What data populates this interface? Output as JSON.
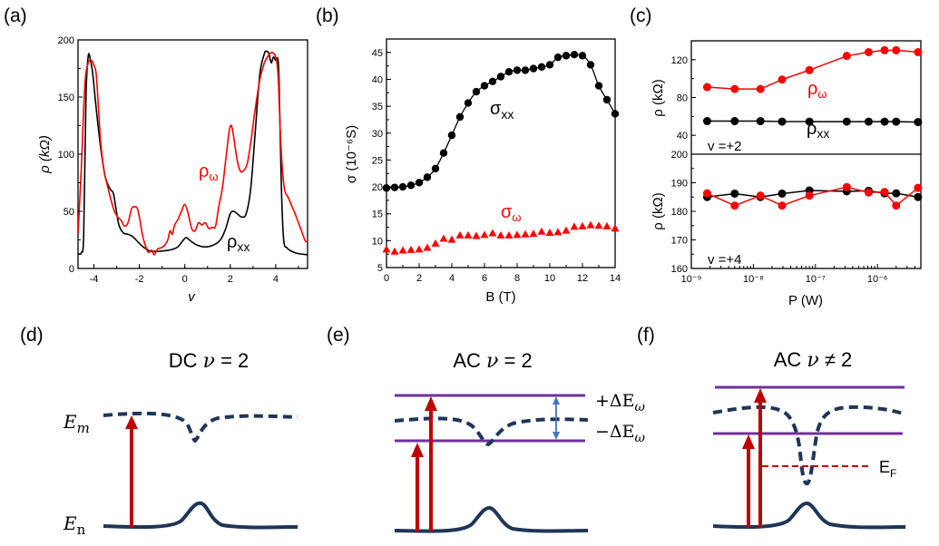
{
  "figure": {
    "panel_labels": [
      "(a)",
      "(b)",
      "(c)",
      "(d)",
      "(e)",
      "(f)"
    ]
  },
  "chart_data": [
    {
      "id": "a",
      "type": "line",
      "xlabel": "v",
      "ylabel": "ρ (kΩ)",
      "xlim": [
        -4.7,
        5.4
      ],
      "ylim": [
        0,
        200
      ],
      "xticks": [
        -4,
        -2,
        0,
        2,
        4
      ],
      "yticks": [
        0,
        50,
        100,
        150,
        200
      ],
      "grid": false,
      "annotations": [
        {
          "text": "ρ",
          "sub": "ω",
          "color": "#ff0000",
          "series": "rho_omega"
        },
        {
          "text": "ρ",
          "sub": "xx",
          "color": "#000000",
          "series": "rho_xx"
        }
      ],
      "series": [
        {
          "name": "ρxx",
          "color": "#000000",
          "x": [
            -4.7,
            -4.55,
            -4.45,
            -4.35,
            -4.25,
            -4.15,
            -4.05,
            -3.9,
            -3.7,
            -3.5,
            -3.3,
            -3.15,
            -3.05,
            -2.9,
            -2.7,
            -2.5,
            -2.3,
            -2.1,
            -1.9,
            -1.7,
            -1.5,
            -1.3,
            -1.1,
            -0.9,
            -0.7,
            -0.5,
            -0.3,
            -0.1,
            0.05,
            0.2,
            0.4,
            0.6,
            0.8,
            1.0,
            1.2,
            1.4,
            1.6,
            1.8,
            2.0,
            2.15,
            2.3,
            2.5,
            2.7,
            2.9,
            3.1,
            3.3,
            3.5,
            3.6,
            3.7,
            3.8,
            3.9,
            4.0,
            4.1,
            4.15,
            4.25,
            4.35,
            4.5,
            4.7,
            5.0,
            5.4
          ],
          "y": [
            13,
            14,
            30,
            150,
            186,
            182,
            170,
            140,
            105,
            80,
            70,
            66,
            55,
            38,
            31,
            30,
            28,
            24,
            20,
            17,
            15,
            15,
            15,
            15.5,
            16,
            17,
            19,
            24,
            27,
            25,
            22,
            20,
            19,
            19,
            20,
            22,
            26,
            35,
            48,
            50,
            48,
            45,
            48,
            70,
            120,
            170,
            188,
            190,
            188,
            180,
            185,
            182,
            183,
            160,
            70,
            25,
            18,
            15,
            13,
            12
          ]
        },
        {
          "name": "ρω",
          "color": "#ff0000",
          "x": [
            -4.7,
            -4.55,
            -4.4,
            -4.25,
            -4.1,
            -4.0,
            -3.9,
            -3.8,
            -3.7,
            -3.55,
            -3.4,
            -3.25,
            -3.1,
            -2.95,
            -2.8,
            -2.65,
            -2.5,
            -2.35,
            -2.25,
            -2.1,
            -2.0,
            -1.85,
            -1.7,
            -1.6,
            -1.45,
            -1.35,
            -1.2,
            -1.05,
            -0.9,
            -0.75,
            -0.65,
            -0.55,
            -0.45,
            -0.3,
            -0.15,
            0.0,
            0.15,
            0.3,
            0.45,
            0.6,
            0.75,
            0.9,
            1.05,
            1.2,
            1.35,
            1.5,
            1.65,
            1.8,
            1.95,
            2.05,
            2.15,
            2.3,
            2.45,
            2.6,
            2.75,
            2.9,
            3.1,
            3.3,
            3.5,
            3.7,
            3.85,
            4.0,
            4.1,
            4.2,
            4.3,
            4.4,
            4.55,
            4.7,
            4.85,
            5.0,
            5.15,
            5.3,
            5.4
          ],
          "y": [
            30,
            90,
            160,
            180,
            182,
            178,
            170,
            140,
            110,
            85,
            72,
            60,
            50,
            45,
            42,
            37,
            40,
            52,
            54,
            53,
            45,
            28,
            18,
            14,
            16,
            12,
            17,
            18,
            20,
            25,
            33,
            30,
            38,
            43,
            50,
            56,
            48,
            35,
            33,
            40,
            38,
            40,
            35,
            36,
            37,
            55,
            70,
            95,
            120,
            125,
            115,
            95,
            85,
            86,
            92,
            110,
            140,
            165,
            180,
            187,
            189,
            185,
            170,
            120,
            85,
            68,
            62,
            55,
            48,
            40,
            32,
            24,
            24
          ]
        }
      ]
    },
    {
      "id": "b",
      "type": "scatter",
      "xlabel": "B (T)",
      "ylabel": "σ (10⁻⁶S)",
      "xlim": [
        0,
        14
      ],
      "ylim": [
        5,
        47.5
      ],
      "xticks": [
        0,
        2,
        4,
        6,
        8,
        10,
        12,
        14
      ],
      "yticks": [
        5,
        10,
        15,
        20,
        25,
        30,
        35,
        40,
        45
      ],
      "grid": false,
      "annotations": [
        {
          "text": "σ",
          "sub": "xx",
          "color": "#000000",
          "series": "sigma_xx"
        },
        {
          "text": "σ",
          "sub": "ω",
          "color": "#ff0000",
          "series": "sigma_omega"
        }
      ],
      "series": [
        {
          "name": "σxx",
          "color": "#000000",
          "marker": "circle",
          "line": true,
          "x": [
            0,
            0.5,
            1,
            1.5,
            2,
            2.5,
            3,
            3.5,
            4,
            4.5,
            5,
            5.5,
            6,
            6.5,
            7,
            7.5,
            8,
            8.5,
            9,
            9.5,
            10,
            10.5,
            11,
            11.5,
            12,
            12.5,
            13,
            13.5,
            14
          ],
          "y": [
            19.8,
            19.9,
            20.0,
            20.3,
            20.8,
            21.8,
            23.4,
            26.3,
            29.6,
            33.0,
            35.6,
            37.7,
            38.8,
            39.6,
            40.5,
            41.4,
            41.7,
            41.7,
            42.0,
            42.3,
            42.7,
            44.1,
            44.4,
            44.6,
            44.4,
            42.7,
            38.8,
            36.2,
            33.6
          ]
        },
        {
          "name": "σω",
          "color": "#ff0000",
          "marker": "triangle",
          "line": false,
          "x": [
            0,
            0.5,
            1,
            1.5,
            2,
            2.5,
            3,
            3.5,
            4,
            4.5,
            5,
            5.5,
            6,
            6.5,
            7,
            7.5,
            8,
            8.5,
            9,
            9.5,
            10,
            10.5,
            11,
            11.5,
            12,
            12.5,
            13,
            13.5,
            14
          ],
          "y": [
            8.4,
            8.0,
            8.2,
            8.3,
            8.4,
            8.7,
            9.5,
            10.4,
            10.2,
            11.0,
            11.0,
            10.9,
            11.1,
            11.4,
            11.0,
            11.0,
            11.1,
            11.2,
            11.3,
            11.7,
            11.5,
            11.6,
            11.9,
            12.6,
            12.7,
            12.9,
            12.8,
            12.7,
            12.3
          ]
        }
      ]
    },
    {
      "id": "c",
      "type": "line",
      "xlabel": "P (W)",
      "xscale": "log",
      "xlim": [
        1e-09,
        5e-06
      ],
      "xticks": [
        "10⁻⁹",
        "10⁻⁸",
        "10⁻⁷",
        "10⁻⁶"
      ],
      "grid": false,
      "subplots": [
        {
          "id": "c-top",
          "ylabel": "ρ (kΩ)",
          "ylim": [
            20,
            140
          ],
          "yticks": [
            40,
            80,
            120
          ],
          "inset_label": "v =+2",
          "annotations": [
            {
              "text": "ρ",
              "sub": "ω",
              "color": "#ff0000"
            },
            {
              "text": "ρ",
              "sub": "xx",
              "color": "#000000"
            }
          ],
          "series": [
            {
              "name": "ρω",
              "color": "#ff0000",
              "x": [
                1.8e-09,
                5e-09,
                1.3e-08,
                2.9e-08,
                8e-08,
                3.2e-07,
                7.2e-07,
                1.3e-06,
                2e-06,
                4.5e-06
              ],
              "y": [
                91,
                89,
                89,
                99,
                109,
                124,
                128,
                130,
                130,
                128
              ]
            },
            {
              "name": "ρxx",
              "color": "#000000",
              "x": [
                1.8e-09,
                5e-09,
                1.3e-08,
                2.9e-08,
                8e-08,
                3.2e-07,
                7.2e-07,
                1.3e-06,
                2e-06,
                4.5e-06
              ],
              "y": [
                55,
                55,
                55,
                54.5,
                54.5,
                54.5,
                54.5,
                54.5,
                54.5,
                54
              ]
            }
          ]
        },
        {
          "id": "c-bottom",
          "ylabel": "ρ (kΩ)",
          "ylim": [
            160,
            200
          ],
          "yticks": [
            160,
            170,
            180,
            190,
            200
          ],
          "inset_label": "v =+4",
          "series": [
            {
              "name": "ρxx",
              "color": "#000000",
              "x": [
                1.8e-09,
                5e-09,
                1.3e-08,
                2.9e-08,
                8e-08,
                3.2e-07,
                7.2e-07,
                1.3e-06,
                2e-06,
                4.5e-06
              ],
              "y": [
                185,
                186.2,
                185,
                186.2,
                187.3,
                187,
                187.2,
                186.3,
                186.3,
                185
              ]
            },
            {
              "name": "ρω",
              "color": "#ff0000",
              "x": [
                1.8e-09,
                5e-09,
                1.3e-08,
                2.9e-08,
                8e-08,
                3.2e-07,
                7.2e-07,
                1.3e-06,
                2e-06,
                4.5e-06
              ],
              "y": [
                186.3,
                182,
                185.5,
                182,
                185.5,
                188.5,
                186.6,
                186.8,
                182,
                188.2
              ]
            }
          ]
        }
      ]
    }
  ],
  "diagrams": {
    "d": {
      "title_prefix": "DC ",
      "title_var": "ν",
      "title_suffix": " = 2",
      "upper_level_label": "E",
      "upper_level_sub": "m",
      "lower_level_label": "E",
      "lower_level_sub": "n"
    },
    "e": {
      "title_prefix": "AC ",
      "title_var": "ν",
      "title_suffix": " = 2",
      "plus_label": "+ΔE",
      "minus_label": "−ΔE",
      "delta_sub": "ω"
    },
    "f": {
      "title_prefix": "AC ",
      "title_var": "ν",
      "title_suffix": " ≠ 2",
      "fermi_label": "E",
      "fermi_sub": "F"
    },
    "colors": {
      "band": "#1f3558",
      "arrow": "#c00000",
      "level": "#7030a0",
      "double_arrow": "#4472c4",
      "fermi": "#c00000"
    }
  }
}
